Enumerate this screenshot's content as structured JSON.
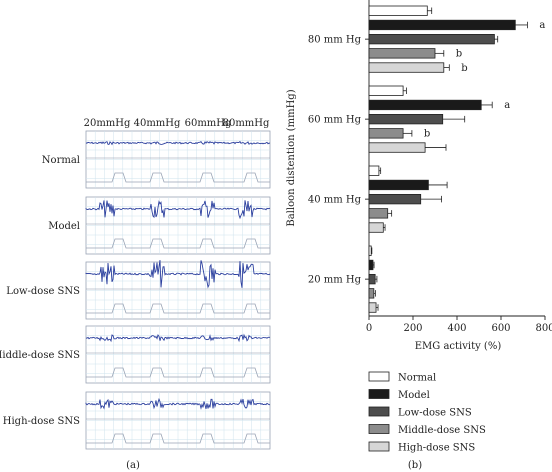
{
  "panel_a": {
    "caption": "(a)",
    "column_labels": [
      "20mmHg",
      "40mmHg",
      "60mmHg",
      "80mmHg"
    ],
    "row_labels": [
      "Normal",
      "Model",
      "Low-dose SNS",
      "Middle-dose SNS",
      "High-dose SNS"
    ],
    "trace_color": "#2b3f9e"
  },
  "panel_b": {
    "caption": "(b)"
  },
  "chart_data": {
    "type": "bar",
    "orientation": "horizontal",
    "title": "",
    "xlabel": "EMG activity (%)",
    "ylabel": "Balloon distention (mmHg)",
    "xlim": [
      0,
      800
    ],
    "xticks": [
      "0",
      "200",
      "400",
      "600",
      "800"
    ],
    "categories": [
      "80 mm Hg",
      "60 mm Hg",
      "40 mm Hg",
      "20 mm Hg"
    ],
    "legend_position": "bottom",
    "series": [
      {
        "name": "Normal",
        "color": "#ffffff",
        "values": [
          265,
          155,
          45,
          10
        ],
        "errors": [
          20,
          15,
          8,
          3
        ],
        "labels": [
          "",
          "",
          "",
          ""
        ]
      },
      {
        "name": "Model",
        "color": "#1a1a1a",
        "values": [
          665,
          510,
          270,
          18
        ],
        "errors": [
          55,
          50,
          85,
          5
        ],
        "labels": [
          "a",
          "a",
          "",
          ""
        ]
      },
      {
        "name": "Low-dose SNS",
        "color": "#4d4d4d",
        "values": [
          570,
          335,
          235,
          28
        ],
        "errors": [
          15,
          100,
          95,
          8
        ],
        "labels": [
          "",
          "",
          "",
          ""
        ]
      },
      {
        "name": "Middle-dose SNS",
        "color": "#8c8c8c",
        "values": [
          300,
          155,
          85,
          22
        ],
        "errors": [
          40,
          40,
          18,
          7
        ],
        "labels": [
          "b",
          "b",
          "",
          ""
        ]
      },
      {
        "name": "High-dose SNS",
        "color": "#d6d6d6",
        "values": [
          340,
          255,
          65,
          32
        ],
        "errors": [
          25,
          95,
          8,
          9
        ],
        "labels": [
          "b",
          "",
          "",
          ""
        ]
      }
    ]
  }
}
